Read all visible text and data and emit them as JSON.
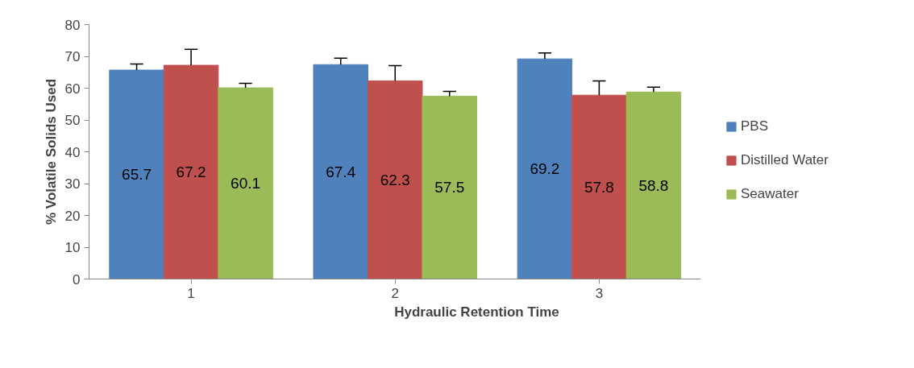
{
  "chart_data": {
    "type": "bar",
    "xlabel": "Hydraulic Retention Time",
    "ylabel": "% Volatile Solids Used",
    "categories": [
      "1",
      "2",
      "3"
    ],
    "series": [
      {
        "name": "PBS",
        "color": "#4f81bd",
        "values": [
          65.7,
          67.4,
          69.2
        ],
        "errors": [
          [
            65.7,
            67.6
          ],
          [
            67.4,
            69.4
          ],
          [
            69.2,
            71.1
          ]
        ]
      },
      {
        "name": "Distilled Water",
        "color": "#c0504d",
        "values": [
          67.2,
          62.3,
          57.8
        ],
        "errors": [
          [
            67.2,
            72.2
          ],
          [
            62.3,
            67.1
          ],
          [
            57.8,
            62.3
          ]
        ]
      },
      {
        "name": "Seawater",
        "color": "#9bbb59",
        "values": [
          60.1,
          57.5,
          58.8
        ],
        "errors": [
          [
            60.1,
            61.5
          ],
          [
            57.5,
            59.0
          ],
          [
            58.8,
            60.3
          ]
        ]
      }
    ],
    "ylim": [
      0,
      80
    ],
    "yticks": [
      0,
      10,
      20,
      30,
      40,
      50,
      60,
      70,
      80
    ],
    "grid": false,
    "legend": "right",
    "data_labels": true
  }
}
